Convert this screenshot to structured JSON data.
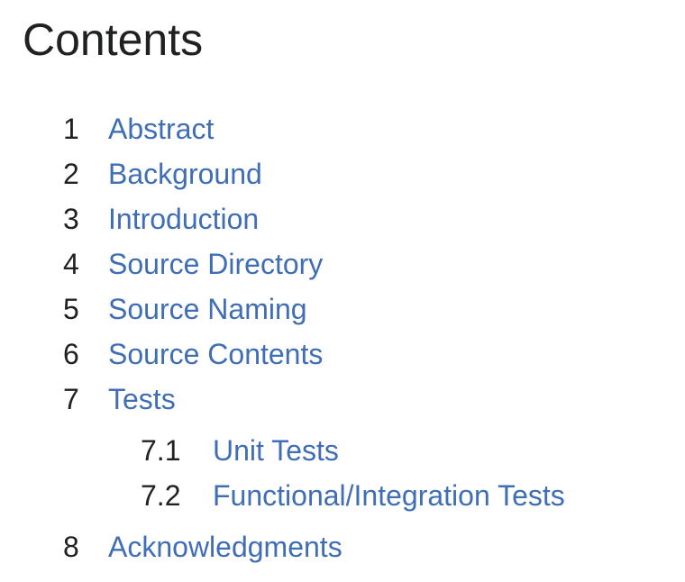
{
  "toc": {
    "title": "Contents",
    "items": [
      {
        "number": "1",
        "label": "Abstract"
      },
      {
        "number": "2",
        "label": "Background"
      },
      {
        "number": "3",
        "label": "Introduction"
      },
      {
        "number": "4",
        "label": "Source Directory"
      },
      {
        "number": "5",
        "label": "Source Naming"
      },
      {
        "number": "6",
        "label": "Source Contents"
      },
      {
        "number": "7",
        "label": "Tests",
        "children": [
          {
            "number": "7.1",
            "label": "Unit Tests"
          },
          {
            "number": "7.2",
            "label": "Functional/Integration Tests"
          }
        ]
      },
      {
        "number": "8",
        "label": "Acknowledgments"
      }
    ],
    "link_color": "#3f6eb5"
  }
}
